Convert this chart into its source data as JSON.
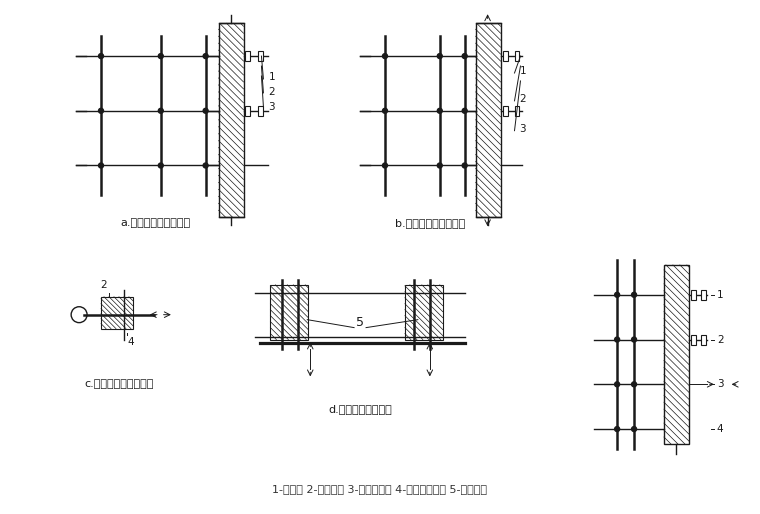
{
  "bg_color": "#ffffff",
  "line_color": "#1a1a1a",
  "label_a": "a.双排脚手架（平面）",
  "label_b": "b.单排脚手架（平面）",
  "label_c": "c.脚手架与框架柱连接",
  "label_d": "d.门窗洞口处的连接",
  "bottom_label": "1-垫木； 2-矩锂管； 3-直角扣件； 4-横向水平杆； 5-附加锂管",
  "fig_width": 7.6,
  "fig_height": 5.14
}
